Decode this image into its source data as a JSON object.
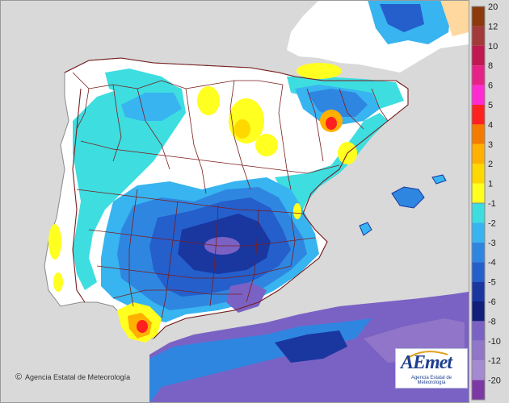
{
  "legend": {
    "colors": {
      "20": "#8c3a0c",
      "12": "#a33939",
      "10": "#c0184f",
      "8": "#e62286",
      "6": "#ff2bd0",
      "5": "#ff2020",
      "4": "#f57a00",
      "3": "#ffb000",
      "2": "#ffd800",
      "1": "#ffff20",
      "-1": "#3ddde0",
      "-2": "#38b4f0",
      "-3": "#2f86e0",
      "-4": "#245fcc",
      "-5": "#1a37a0",
      "-6": "#0f1f7a",
      "-8": "#7a62c4",
      "-10": "#9075c8",
      "-12": "#a48ad0",
      "-20": "#7c38a4"
    },
    "positive_labels": [
      "20",
      "12",
      "10",
      "8",
      "6",
      "5",
      "4",
      "3",
      "2",
      "1"
    ],
    "negative_labels": [
      "-1",
      "-2",
      "-3",
      "-4",
      "-5",
      "-6",
      "-8",
      "-10",
      "-12",
      "-20"
    ]
  },
  "credit": "Agencia Estatal de Meteorología",
  "copyright_symbol": "©",
  "logo": {
    "word": "AEmet",
    "subtitle": "Agencia Estatal de Meteorología"
  },
  "map_colors": {
    "sea": "#d9d9d9",
    "land": "#ffffff",
    "border": "#7a1c1c"
  }
}
